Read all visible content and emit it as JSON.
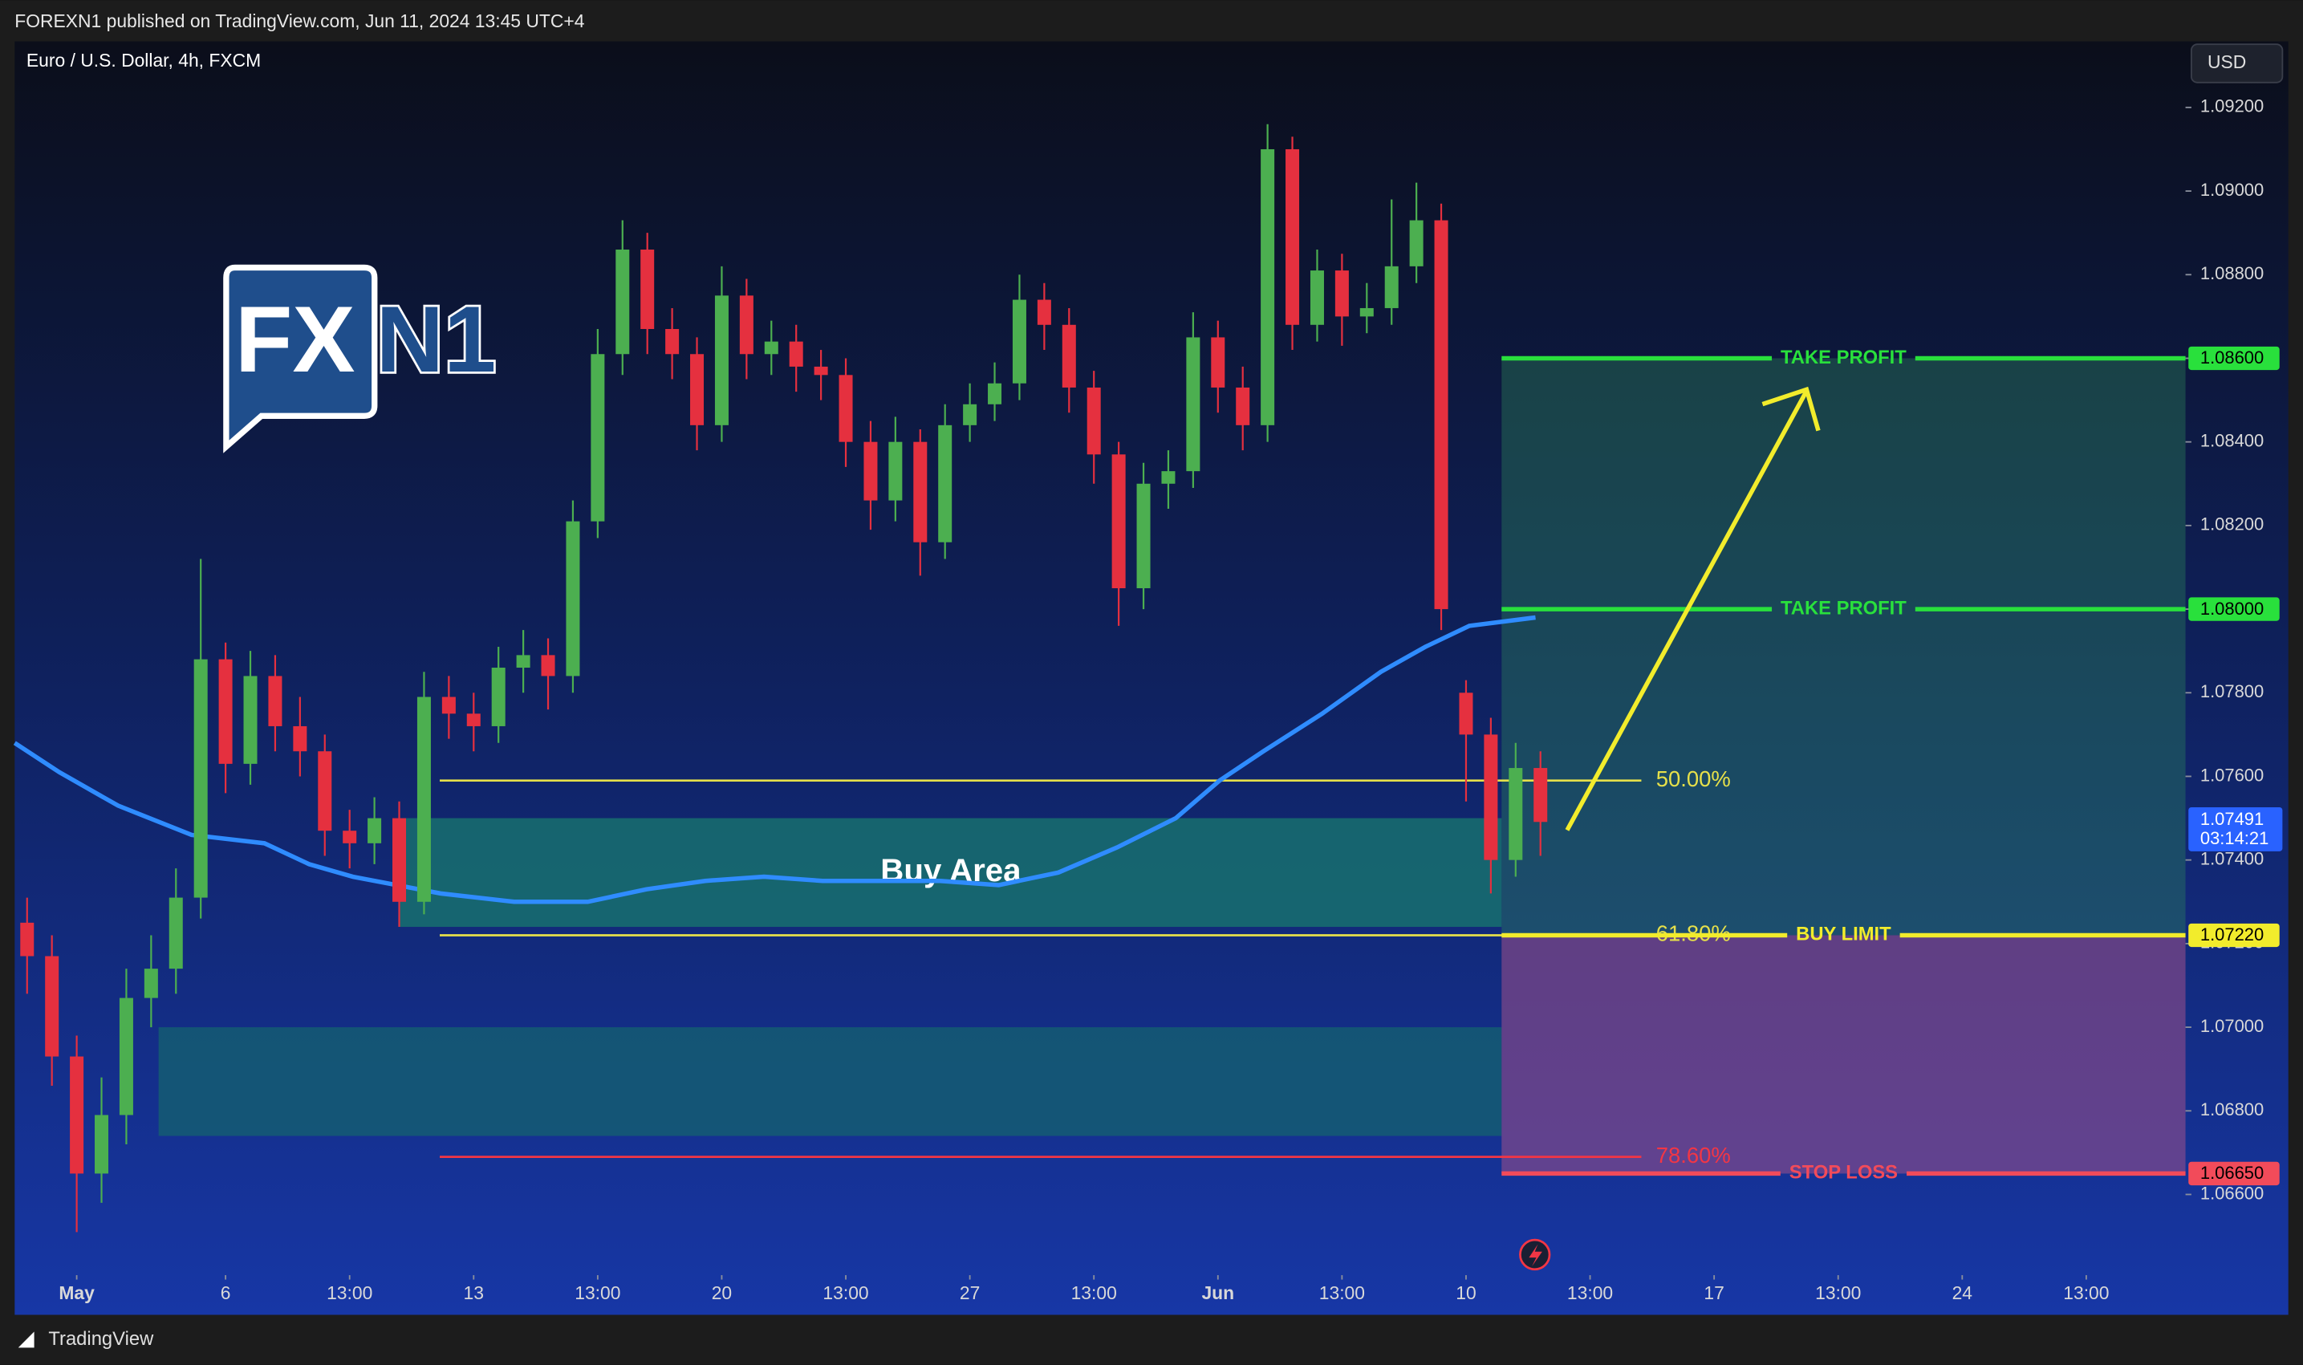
{
  "header": {
    "publisher": "FOREXN1 published on TradingView.com, Jun 11, 2024 13:45 UTC+4",
    "currency_button": "USD",
    "footer_brand": "TradingView",
    "logo": [
      "FX",
      "N1"
    ]
  },
  "chart_data": {
    "type": "candlestick",
    "title": "Euro / U.S. Dollar, 4h, FXCM",
    "up_color": "#4caf50",
    "down_color": "#e5303f",
    "xlim": [
      -7.5,
      255
    ],
    "ylim": [
      1.06414,
      1.09358
    ],
    "xticks": [
      {
        "value": 0,
        "label": "May"
      },
      {
        "value": 18,
        "label": "6"
      },
      {
        "value": 33,
        "label": "13:00"
      },
      {
        "value": 48,
        "label": "13"
      },
      {
        "value": 63,
        "label": "13:00"
      },
      {
        "value": 78,
        "label": "20"
      },
      {
        "value": 93,
        "label": "13:00"
      },
      {
        "value": 108,
        "label": "27"
      },
      {
        "value": 123,
        "label": "13:00"
      },
      {
        "value": 138,
        "label": "Jun"
      },
      {
        "value": 153,
        "label": "13:00"
      },
      {
        "value": 168,
        "label": "10"
      },
      {
        "value": 183,
        "label": "13:00"
      },
      {
        "value": 198,
        "label": "17"
      },
      {
        "value": 213,
        "label": "13:00"
      },
      {
        "value": 228,
        "label": "24"
      },
      {
        "value": 243,
        "label": "13:00"
      }
    ],
    "yticks": [
      {
        "value": 1.066,
        "label": "1.06600"
      },
      {
        "value": 1.068,
        "label": "1.06800"
      },
      {
        "value": 1.07,
        "label": "1.07000"
      },
      {
        "value": 1.072,
        "label": "1.07200"
      },
      {
        "value": 1.074,
        "label": "1.07400"
      },
      {
        "value": 1.076,
        "label": "1.07600"
      },
      {
        "value": 1.078,
        "label": "1.07800"
      },
      {
        "value": 1.08,
        "label": "1.08000"
      },
      {
        "value": 1.082,
        "label": "1.08200"
      },
      {
        "value": 1.084,
        "label": "1.08400"
      },
      {
        "value": 1.086,
        "label": "1.08600"
      },
      {
        "value": 1.088,
        "label": "1.08800"
      },
      {
        "value": 1.09,
        "label": "1.09000"
      },
      {
        "value": 1.092,
        "label": "1.09200"
      }
    ],
    "x": [
      -6,
      -3,
      0,
      3,
      6,
      9,
      12,
      15,
      18,
      21,
      24,
      27,
      30,
      33,
      36,
      39,
      42,
      45,
      48,
      51,
      54,
      57,
      60,
      63,
      66,
      69,
      72,
      75,
      78,
      81,
      84,
      87,
      90,
      93,
      96,
      99,
      102,
      105,
      108,
      111,
      114,
      117,
      120,
      123,
      126,
      129,
      132,
      135,
      138,
      141,
      144,
      147,
      150,
      153,
      156,
      159,
      162,
      165,
      168,
      171,
      174,
      177
    ],
    "open": [
      1.0725,
      1.0717,
      1.0693,
      1.0665,
      1.0679,
      1.0707,
      1.0714,
      1.0731,
      1.0788,
      1.0763,
      1.0784,
      1.0772,
      1.0766,
      1.0747,
      1.0744,
      1.075,
      1.073,
      1.0779,
      1.0775,
      1.0772,
      1.0786,
      1.0789,
      1.0784,
      1.0821,
      1.0861,
      1.0886,
      1.0867,
      1.0861,
      1.0844,
      1.0875,
      1.0861,
      1.0864,
      1.0858,
      1.0856,
      1.084,
      1.0826,
      1.084,
      1.0816,
      1.0844,
      1.0849,
      1.0854,
      1.0874,
      1.0868,
      1.0853,
      1.0837,
      1.0805,
      1.083,
      1.0833,
      1.0865,
      1.0853,
      1.0844,
      1.091,
      1.0868,
      1.0881,
      1.087,
      1.0872,
      1.0882,
      1.0893,
      1.078,
      1.077,
      1.074,
      1.0762
    ],
    "high": [
      1.0731,
      1.0722,
      1.0698,
      1.0688,
      1.0714,
      1.0722,
      1.0738,
      1.0812,
      1.0792,
      1.079,
      1.0789,
      1.0779,
      1.077,
      1.0752,
      1.0755,
      1.0754,
      1.0785,
      1.0784,
      1.078,
      1.0791,
      1.0795,
      1.0793,
      1.0826,
      1.0867,
      1.0893,
      1.089,
      1.0872,
      1.0865,
      1.0882,
      1.0879,
      1.0869,
      1.0868,
      1.0862,
      1.086,
      1.0845,
      1.0846,
      1.0843,
      1.0849,
      1.0854,
      1.0859,
      1.088,
      1.0878,
      1.0872,
      1.0857,
      1.084,
      1.0835,
      1.0838,
      1.0871,
      1.0869,
      1.0858,
      1.0916,
      1.0913,
      1.0886,
      1.0885,
      1.0878,
      1.0898,
      1.0902,
      1.0897,
      1.0783,
      1.0774,
      1.0768,
      1.0766
    ],
    "low": [
      1.0708,
      1.0686,
      1.0651,
      1.0658,
      1.0672,
      1.07,
      1.0708,
      1.0726,
      1.0756,
      1.0758,
      1.0766,
      1.076,
      1.0741,
      1.0738,
      1.0739,
      1.0724,
      1.0727,
      1.0769,
      1.0766,
      1.0768,
      1.078,
      1.0776,
      1.078,
      1.0817,
      1.0856,
      1.0861,
      1.0855,
      1.0838,
      1.084,
      1.0855,
      1.0856,
      1.0852,
      1.085,
      1.0834,
      1.0819,
      1.0821,
      1.0808,
      1.0812,
      1.084,
      1.0845,
      1.085,
      1.0862,
      1.0847,
      1.083,
      1.0796,
      1.08,
      1.0824,
      1.0829,
      1.0847,
      1.0838,
      1.084,
      1.0862,
      1.0864,
      1.0863,
      1.0866,
      1.0868,
      1.0878,
      1.0795,
      1.0754,
      1.0732,
      1.0736,
      1.0741
    ],
    "close": [
      1.0717,
      1.0693,
      1.0665,
      1.0679,
      1.0707,
      1.0714,
      1.0731,
      1.0788,
      1.0763,
      1.0784,
      1.0772,
      1.0766,
      1.0747,
      1.0744,
      1.075,
      1.073,
      1.0779,
      1.0775,
      1.0772,
      1.0786,
      1.0789,
      1.0784,
      1.0821,
      1.0861,
      1.0886,
      1.0867,
      1.0861,
      1.0844,
      1.0875,
      1.0861,
      1.0864,
      1.0858,
      1.0856,
      1.084,
      1.0826,
      1.084,
      1.0816,
      1.0844,
      1.0849,
      1.0854,
      1.0874,
      1.0868,
      1.0853,
      1.0837,
      1.0805,
      1.083,
      1.0833,
      1.0865,
      1.0853,
      1.0844,
      1.091,
      1.0868,
      1.0881,
      1.087,
      1.0872,
      1.0882,
      1.0893,
      1.08,
      1.077,
      1.074,
      1.0762,
      1.07491
    ],
    "overlay": {
      "color": "#2f8cff",
      "x": [
        -7.5,
        -2.1,
        5,
        13.9,
        22.7,
        28.1,
        33.4,
        38.7,
        44,
        52.9,
        61.8,
        68.9,
        76,
        83.1,
        90.2,
        97.3,
        104.4,
        111.5,
        118.7,
        125.8,
        132.9,
        138.2,
        143.5,
        150.6,
        157.7,
        163.1,
        168.4,
        176.4
      ],
      "values": [
        1.0768,
        1.0761,
        1.0753,
        1.0746,
        1.0744,
        1.0739,
        1.0736,
        1.0734,
        1.0732,
        1.073,
        1.073,
        1.0733,
        1.0735,
        1.0736,
        1.0735,
        1.0735,
        1.0735,
        1.0734,
        1.0737,
        1.0743,
        1.075,
        1.0759,
        1.0766,
        1.0775,
        1.0785,
        1.0791,
        1.0796,
        1.0798
      ]
    },
    "zones": [
      {
        "label": "Buy Area",
        "x": [
          39.1,
          172.3
        ],
        "from": 1.0724,
        "to": 1.075,
        "color": "#17706e"
      },
      {
        "x": [
          9.9,
          172.3
        ],
        "from": 1.0674,
        "to": 1.07,
        "color": "#145c72"
      }
    ],
    "fib_x": [
      43.9,
      189.2
    ],
    "fibs": [
      {
        "label": "50.00%",
        "price": 1.0759,
        "color": "#e6e04a"
      },
      {
        "label": "61.80%",
        "price": 1.0722,
        "color": "#e6e04a"
      },
      {
        "label": "78.60%",
        "price": 1.0669,
        "color": "#f23645"
      }
    ],
    "levels_x_start": 172.3,
    "levels": [
      {
        "text": "TAKE PROFIT",
        "price": {
          "value": 1.086,
          "label": "1.08600"
        },
        "color": "#29e03c"
      },
      {
        "text": "TAKE PROFIT",
        "price": {
          "value": 1.08,
          "label": "1.08000"
        },
        "color": "#29e03c"
      },
      {
        "text": "BUY LIMIT",
        "price": {
          "value": 1.0722,
          "label": "1.07220"
        },
        "color": "#f2ec2c"
      },
      {
        "text": "STOP LOSS",
        "price": {
          "value": 1.0665,
          "label": "1.06650"
        },
        "color": "#f24b5a"
      }
    ],
    "last_price": {
      "value": 1.07491,
      "label": "1.07491",
      "countdown": "03:14:21"
    }
  }
}
